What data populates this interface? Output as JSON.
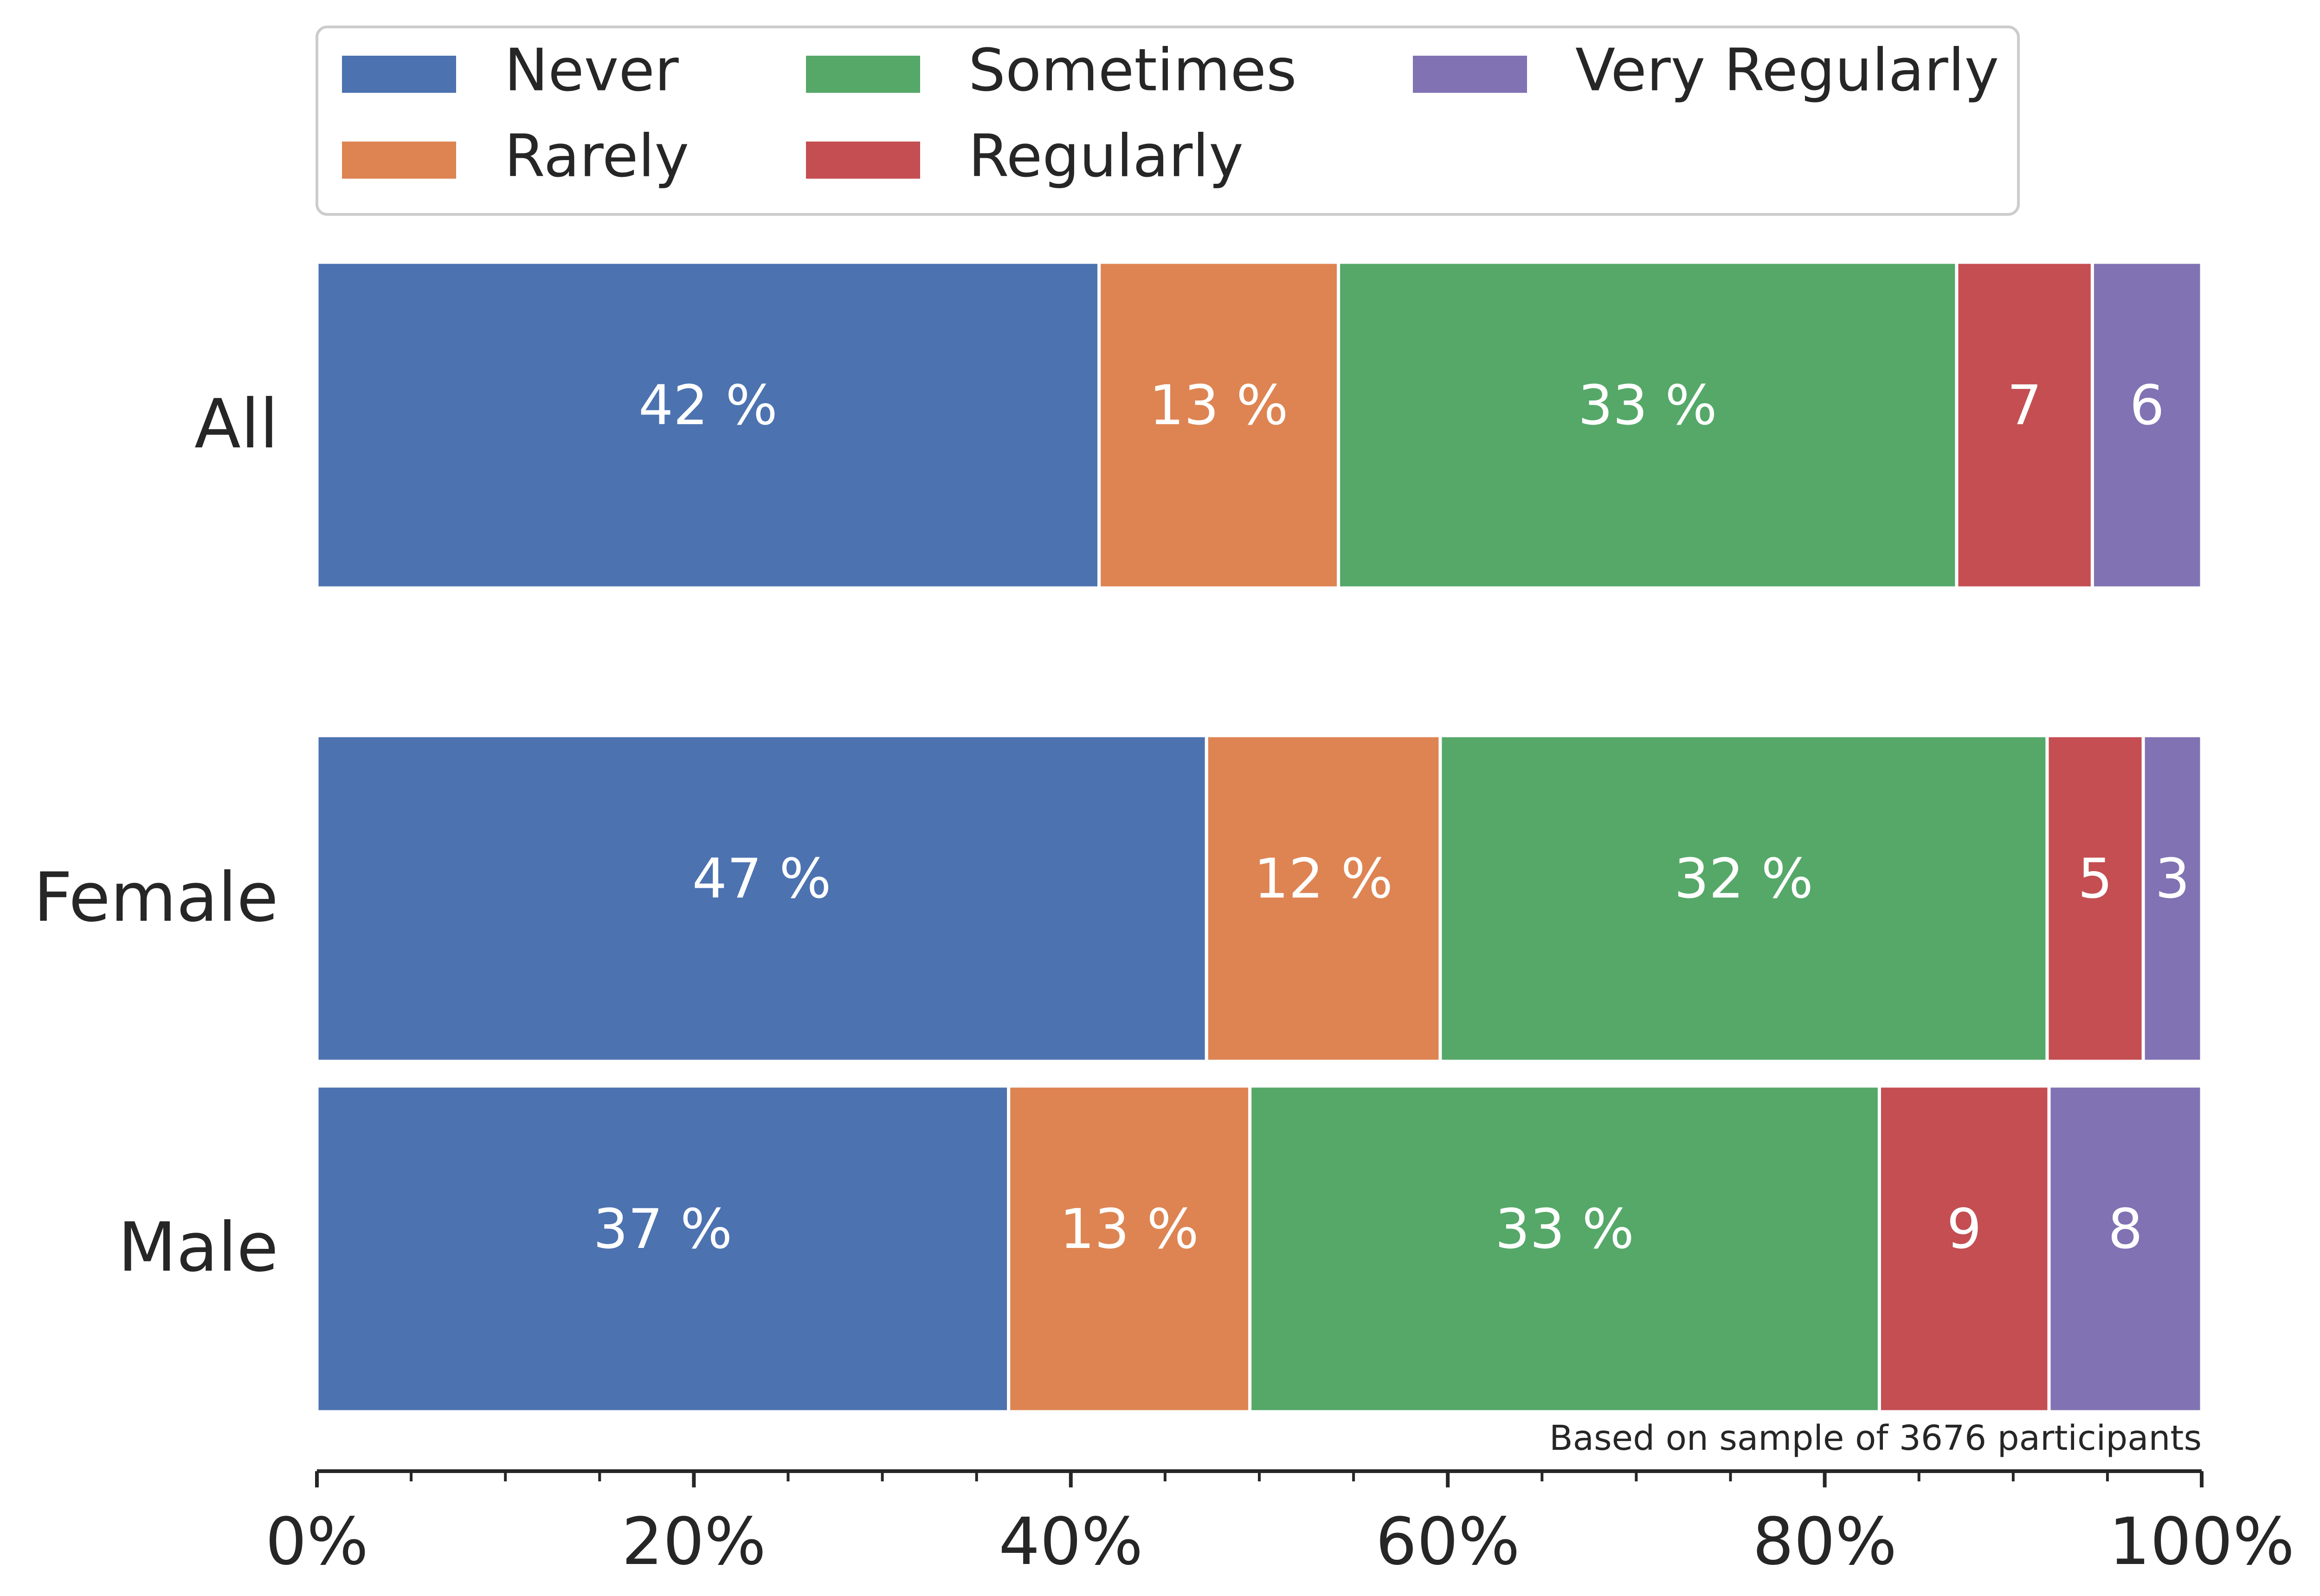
{
  "chart_data": {
    "type": "bar",
    "orientation": "horizontal",
    "stacked": true,
    "categories": [
      "All",
      "Female",
      "Male"
    ],
    "series": [
      {
        "name": "Never",
        "color": "#4c72b0",
        "values": [
          41.5,
          47.2,
          36.7
        ],
        "labels": [
          "42 %",
          "47 %",
          "37 %"
        ]
      },
      {
        "name": "Rarely",
        "color": "#dd8452",
        "values": [
          12.7,
          12.4,
          12.8
        ],
        "labels": [
          "13 %",
          "12 %",
          "13 %"
        ]
      },
      {
        "name": "Sometimes",
        "color": "#55a868",
        "values": [
          32.8,
          32.2,
          33.4
        ],
        "labels": [
          "33 %",
          "32 %",
          "33 %"
        ]
      },
      {
        "name": "Regularly",
        "color": "#c44e52",
        "values": [
          7.2,
          5.1,
          9.0
        ],
        "labels": [
          "7",
          "5",
          "9"
        ]
      },
      {
        "name": "Very Regularly",
        "color": "#8172b3",
        "values": [
          5.8,
          3.1,
          8.1
        ],
        "labels": [
          "6",
          "3",
          "8"
        ]
      }
    ],
    "xlim": [
      0,
      100
    ],
    "x_ticks": [
      {
        "value": 0,
        "label": "0%"
      },
      {
        "value": 20,
        "label": "20%"
      },
      {
        "value": 40,
        "label": "40%"
      },
      {
        "value": 60,
        "label": "60%"
      },
      {
        "value": 80,
        "label": "80%"
      },
      {
        "value": 100,
        "label": "100%"
      }
    ],
    "x_minor_ticks": [
      5,
      10,
      15,
      25,
      30,
      35,
      45,
      50,
      55,
      65,
      70,
      75,
      85,
      90,
      95
    ],
    "annotation": "Based on sample of 3676 participants",
    "legend_position": "top",
    "grid": false,
    "title": "",
    "xlabel": "",
    "ylabel": ""
  }
}
